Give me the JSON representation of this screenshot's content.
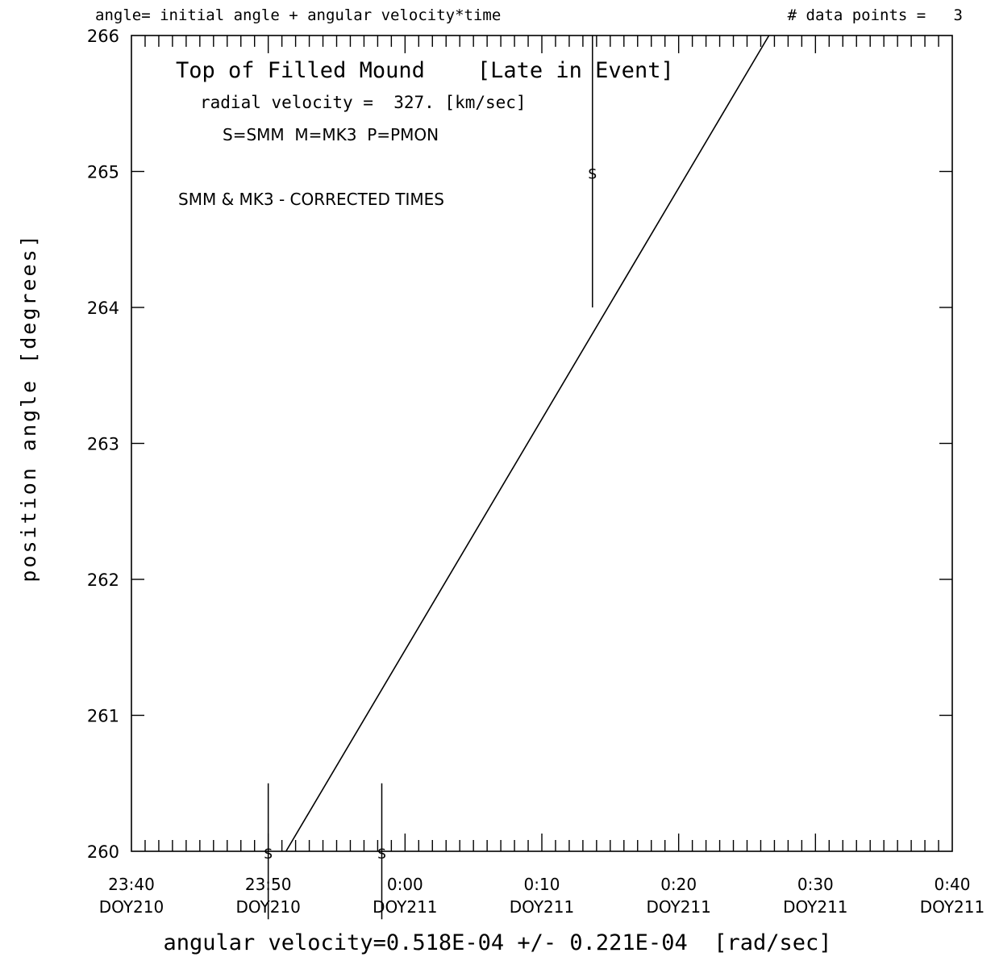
{
  "chart_data": {
    "type": "line",
    "header_left": "angle= initial angle + angular velocity*time",
    "header_right": "# data points =   3",
    "title": "Top of Filled Mound    [Late in Event]",
    "subtitle": "radial velocity =  327. [km/sec]",
    "legend": "S=SMM  M=MK3  P=PMON",
    "note": "SMM & MK3 - CORRECTED TIMES",
    "xlabel": "angular velocity=0.518E-04 +/- 0.221E-04  [rad/sec]",
    "ylabel": "position angle [degrees]",
    "x_ticks": [
      {
        "time": "23:40",
        "day": "DOY210",
        "minutes": -20
      },
      {
        "time": "23:50",
        "day": "DOY210",
        "minutes": -10
      },
      {
        "time": "0:00",
        "day": "DOY211",
        "minutes": 0
      },
      {
        "time": "0:10",
        "day": "DOY211",
        "minutes": 10
      },
      {
        "time": "0:20",
        "day": "DOY211",
        "minutes": 20
      },
      {
        "time": "0:30",
        "day": "DOY211",
        "minutes": 30
      },
      {
        "time": "0:40",
        "day": "DOY211",
        "minutes": 40
      }
    ],
    "xlim_minutes": [
      -20,
      40
    ],
    "ylim": [
      260,
      266
    ],
    "y_ticks": [
      260,
      261,
      262,
      263,
      264,
      265,
      266
    ],
    "points": [
      {
        "label": "S",
        "minutes": -10.0,
        "angle": 260.0,
        "err_low": 259.5,
        "err_high": 260.5
      },
      {
        "label": "S",
        "minutes": -1.7,
        "angle": 260.0,
        "err_low": 259.5,
        "err_high": 260.5
      },
      {
        "label": "S",
        "minutes": 13.7,
        "angle": 265.0,
        "err_low": 264.0,
        "err_high": 266.0
      }
    ],
    "fit_line": {
      "minutes": [
        -8.7,
        26.6
      ],
      "angles": [
        260.0,
        266.0
      ]
    }
  }
}
